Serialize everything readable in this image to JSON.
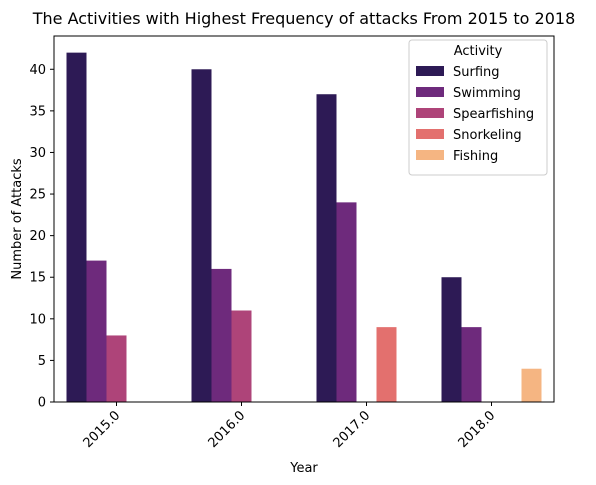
{
  "chart_data": {
    "type": "bar",
    "title": "The Activities with Highest Frequency of attacks From 2015 to 2018",
    "xlabel": "Year",
    "ylabel": "Number of Attacks",
    "categories": [
      "2015.0",
      "2016.0",
      "2017.0",
      "2018.0"
    ],
    "ylim": [
      0,
      44
    ],
    "yticks": [
      0,
      5,
      10,
      15,
      20,
      25,
      30,
      35,
      40
    ],
    "grid": false,
    "legend": {
      "title": "Activity",
      "position": "top-right"
    },
    "series": [
      {
        "name": "Surfing",
        "color": "#2d1a55",
        "values": [
          42,
          40,
          37,
          15
        ]
      },
      {
        "name": "Swimming",
        "color": "#6e2a7c",
        "values": [
          17,
          16,
          24,
          9
        ]
      },
      {
        "name": "Spearfishing",
        "color": "#ae4479",
        "values": [
          8,
          11,
          0,
          0
        ]
      },
      {
        "name": "Snorkeling",
        "color": "#e3706e",
        "values": [
          0,
          0,
          9,
          0
        ]
      },
      {
        "name": "Fishing",
        "color": "#f5b582",
        "values": [
          0,
          0,
          0,
          4
        ]
      }
    ]
  }
}
